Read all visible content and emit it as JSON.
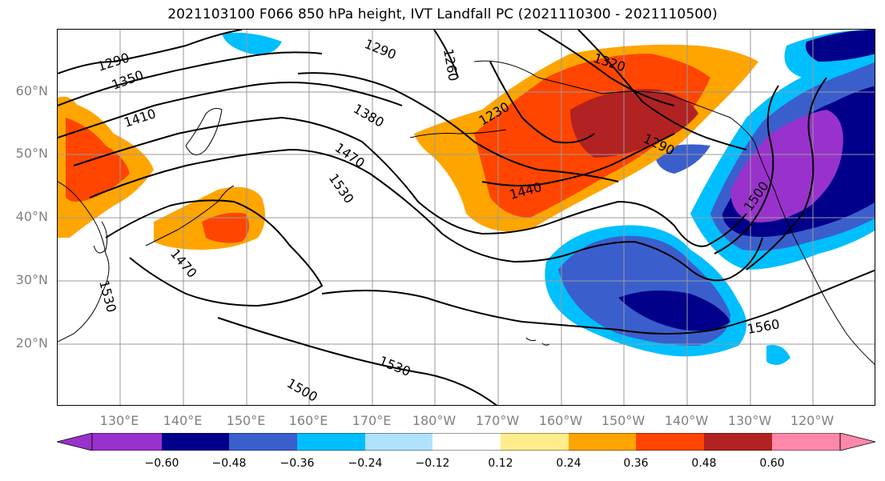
{
  "title": "2021103100 F066 850 hPa height, IVT Landfall PC (2021110300 - 2021110500)",
  "lat_labels": [
    "60°N",
    "50°N",
    "40°N",
    "30°N",
    "20°N"
  ],
  "lon_labels": [
    "130°E",
    "140°E",
    "150°E",
    "160°E",
    "170°E",
    "180°W",
    "170°W",
    "160°W",
    "150°W",
    "140°W",
    "130°W",
    "120°W"
  ],
  "contour_labels": [
    "1290",
    "1350",
    "1410",
    "1290",
    "1260",
    "1320",
    "1380",
    "1230",
    "1470",
    "1530",
    "1440",
    "1290",
    "1500",
    "1470",
    "1530",
    "1560",
    "1530",
    "1500"
  ],
  "colorbar": {
    "ticks": [
      "−0.60",
      "−0.48",
      "−0.36",
      "−0.24",
      "−0.12",
      "0.12",
      "0.24",
      "0.36",
      "0.48",
      "0.60"
    ],
    "colors": [
      "#9932cc",
      "#00008b",
      "#3a5fcd",
      "#00bfff",
      "#b0e2ff",
      "#ffffff",
      "#ffec8b",
      "#ffa500",
      "#ff4500",
      "#b22222"
    ],
    "extend_low": "#9932cc",
    "extend_high": "#ff88aa"
  },
  "grid": true
}
